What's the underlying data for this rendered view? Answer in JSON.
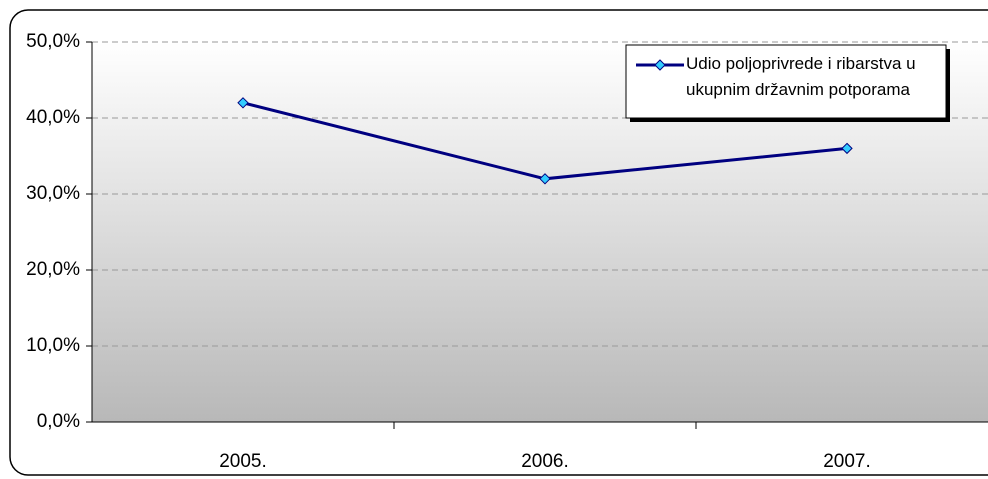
{
  "chart_data": {
    "type": "line",
    "categories": [
      "2005.",
      "2006.",
      "2007."
    ],
    "series": [
      {
        "name": "Udio poljoprivrede i ribarstva u ukupnim državnim potporama",
        "color": "#000080",
        "marker_color": "#33ccff",
        "values": [
          42,
          32,
          36
        ]
      }
    ],
    "ylim": [
      0,
      50
    ],
    "yticks": [
      {
        "value": 0,
        "label": "0,0%"
      },
      {
        "value": 10,
        "label": "10,0%"
      },
      {
        "value": 20,
        "label": "20,0%"
      },
      {
        "value": 30,
        "label": "30,0%"
      },
      {
        "value": 40,
        "label": "40,0%"
      },
      {
        "value": 50,
        "label": "50,0%"
      }
    ],
    "grid": true,
    "legend": "top-right"
  }
}
